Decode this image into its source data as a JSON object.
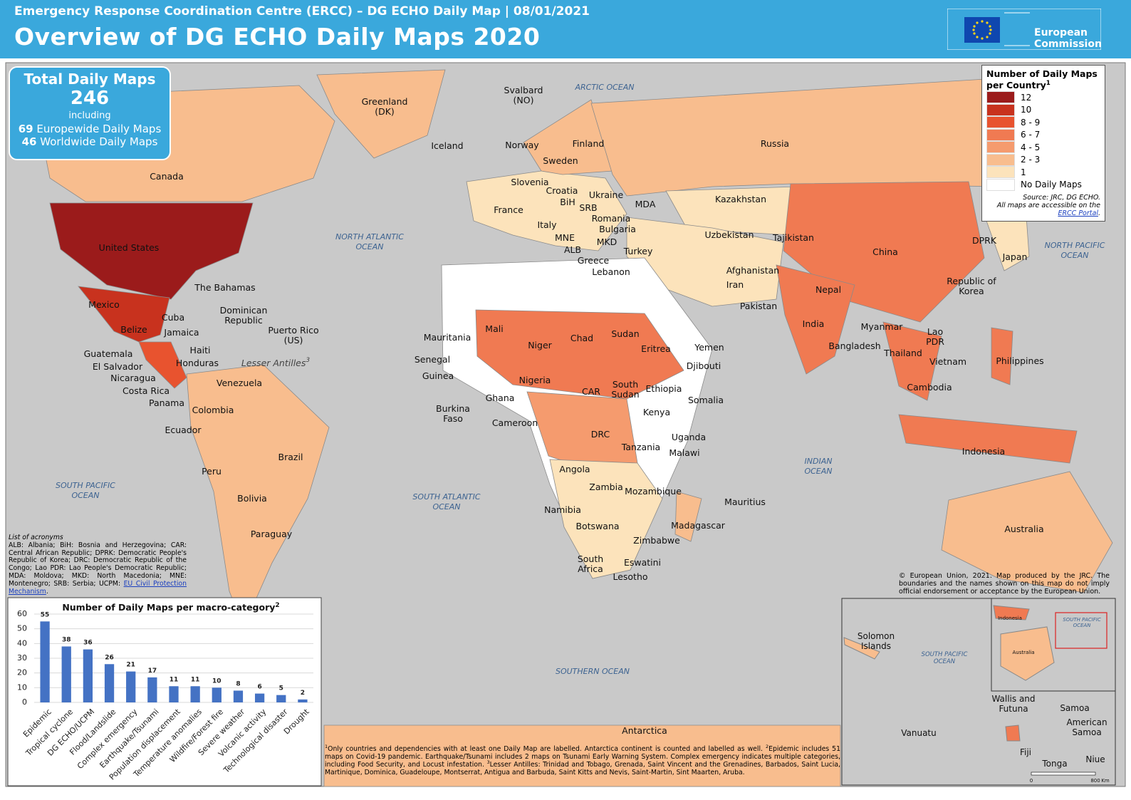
{
  "header": {
    "subtitle": "Emergency Response Coordination Centre (ERCC) – DG ECHO Daily Map | 08/01/2021",
    "title": "Overview of DG ECHO Daily Maps 2020",
    "logo": "European\nCommission"
  },
  "summary": {
    "title": "Total Daily Maps",
    "total": "246",
    "including": "including",
    "europe_count": "69",
    "europe_label": "Europewide Daily Maps",
    "world_count": "46",
    "world_label": "Worldwide Daily Maps"
  },
  "legend": {
    "title": "Number of Daily Maps per Country",
    "title_note": "1",
    "items": [
      {
        "label": "12",
        "color": "#9b1b1b"
      },
      {
        "label": "10",
        "color": "#c8321e"
      },
      {
        "label": "8 - 9",
        "color": "#e8532f"
      },
      {
        "label": "6 - 7",
        "color": "#f07a52"
      },
      {
        "label": "4 - 5",
        "color": "#f59b6e"
      },
      {
        "label": "2 - 3",
        "color": "#f8bd8e"
      },
      {
        "label": "1",
        "color": "#fce3bb"
      },
      {
        "label": "No Daily Maps",
        "color": "#ffffff"
      }
    ],
    "source": "Source: JRC, DG ECHO.",
    "access": "All maps are accessible on the",
    "portal": "ERCC Portal",
    "end": "."
  },
  "map": {
    "countries": [
      "Svalbard\n(NO)",
      "Greenland\n(DK)",
      "Iceland",
      "Norway",
      "Finland",
      "Sweden",
      "Russia",
      "Canada",
      "Slovenia",
      "Croatia",
      "Ukraine",
      "BiH",
      "Kazakhstan",
      "MDA",
      "France",
      "SRB",
      "Romania",
      "Italy",
      "Bulgaria",
      "Uzbekistan",
      "Tajikistan",
      "MNE",
      "MKD",
      "DPRK",
      "ALB",
      "United States",
      "Greece",
      "Turkey",
      "China",
      "Japan",
      "Lebanon",
      "Afghanistan",
      "Republic of\nKorea",
      "Iran",
      "The Bahamas",
      "Nepal",
      "Mexico",
      "Pakistan",
      "Dominican\nRepublic",
      "Cuba",
      "India",
      "Sudan",
      "Myanmar",
      "Puerto Rico\n(US)",
      "Belize",
      "Jamaica",
      "Mali",
      "Lao\nPDR",
      "Mauritania",
      "Chad",
      "Niger",
      "Bangladesh",
      "Yemen",
      "Eritrea",
      "Haiti",
      "Guatemala",
      "Thailand",
      "Senegal",
      "Honduras",
      "Philippines",
      "El Salvador",
      "Vietnam",
      "Djibouti",
      "Guinea",
      "Nicaragua",
      "Nigeria",
      "South\nSudan",
      "Venezuela",
      "Ethiopia",
      "Cambodia",
      "Costa Rica",
      "CAR",
      "Ghana",
      "Somalia",
      "Panama",
      "Burkina\nFaso",
      "Colombia",
      "Kenya",
      "Cameroon",
      "Ecuador",
      "DRC",
      "Uganda",
      "Tanzania",
      "Indonesia",
      "Malawi",
      "Brazil",
      "Angola",
      "Peru",
      "Zambia",
      "Mozambique",
      "Bolivia",
      "Mauritius",
      "Namibia",
      "Madagascar",
      "Botswana",
      "Australia",
      "Paraguay",
      "Zimbabwe",
      "South\nAfrica",
      "Eswatini",
      "Lesotho",
      "Antarctica"
    ],
    "lesser_antilles": "Lesser Antilles",
    "lesser_antilles_note": "3",
    "oceans": [
      "ARCTIC OCEAN",
      "NORTH ATLANTIC\nOCEAN",
      "NORTH PACIFIC\nOCEAN",
      "INDIAN\nOCEAN",
      "SOUTH PACIFIC\nOCEAN",
      "SOUTH ATLANTIC\nOCEAN",
      "SOUTHERN OCEAN"
    ]
  },
  "inset": {
    "labels": [
      "Solomon\nIslands",
      "Vanuatu",
      "Wallis and\nFutuna",
      "Samoa",
      "American\nSamoa",
      "Fiji",
      "Tonga",
      "Niue"
    ],
    "ocean": "SOUTH PACIFIC\nOCEAN",
    "mini_labels": [
      "Indonesia",
      "Australia",
      "SOUTH PACIFIC\nOCEAN"
    ],
    "scale": [
      "0",
      "800",
      "Km"
    ]
  },
  "acronyms": {
    "title": "List of acronyms",
    "text": "ALB: Albania; BiH: Bosnia and Herzegovina; CAR: Central African Republic; DPRK: Democratic People's Republic of Korea; DRC: Democratic Republic of the Congo; Lao PDR: Lao People's Democratic Republic; MDA: Moldova; MKD: North Macedonia; MNE: Montenegro; SRB: Serbia; UCPM:",
    "link": "EU Civil Protection Mechanism",
    "end": "."
  },
  "copyright": "© European Union, 2021. Map produced by the JRC. The boundaries and the names shown on this map do not imply official endorsement or acceptance by the European Union.",
  "footnotes": [
    {
      "mark": "1",
      "text": "Only countries and dependencies with at least one Daily Map are labelled. Antarctica continent is counted and labelled as well."
    },
    {
      "mark": "2",
      "text": "Epidemic includes 51 maps on Covid-19 pandemic. Earthquake/Tsunami includes 2 maps on Tsunami Early Warning System. Complex emergency indicates multiple categories, including Food Security, and Locust infestation."
    },
    {
      "mark": "3",
      "text": "Lesser Antilles: Trinidad and Tobago, Grenada, Saint Vincent and the Grenadines, Barbados, Saint Lucia, Martinique, Dominica, Guadeloupe, Montserrat, Antigua and Barbuda, Saint Kitts and Nevis, Saint-Martin, Sint Maarten, Aruba."
    }
  ],
  "chart_data": {
    "type": "bar",
    "title": "Number of Daily Maps per macro-category",
    "title_note": "2",
    "categories": [
      "Epidemic",
      "Tropical cyclone",
      "DG ECHO/UCPM",
      "Flood/Landslide",
      "Complex emergency",
      "Earthquake/Tsunami",
      "Population displacement",
      "Temperature anomalies",
      "Wildfire/Forest fire",
      "Severe weather",
      "Volcanic activity",
      "Technological disaster",
      "Drought"
    ],
    "values": [
      55,
      38,
      36,
      26,
      21,
      17,
      11,
      11,
      10,
      8,
      6,
      5,
      2
    ],
    "color": "#4472c4",
    "ylim": [
      0,
      60
    ],
    "yticks": [
      0,
      10,
      20,
      30,
      40,
      50,
      60
    ],
    "grid": true
  }
}
